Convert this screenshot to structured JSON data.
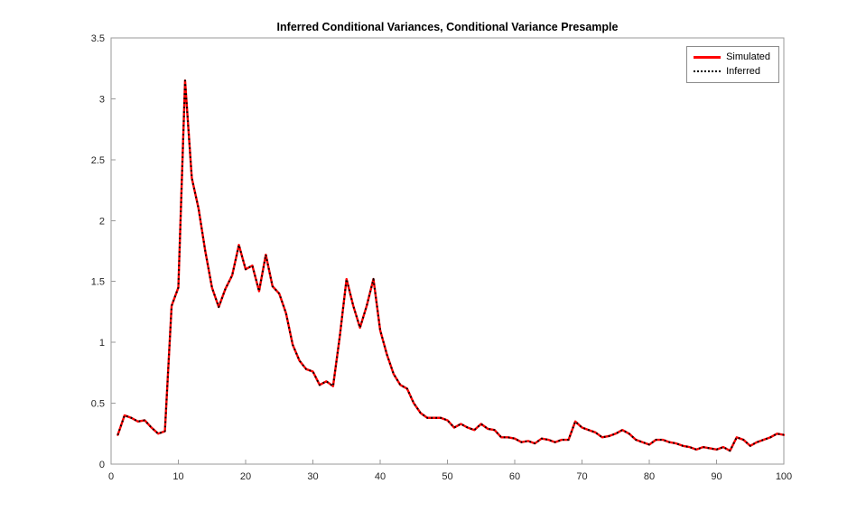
{
  "chart_data": {
    "type": "line",
    "title": "Inferred Conditional Variances, Conditional Variance Presample",
    "xlabel": "",
    "ylabel": "",
    "xlim": [
      0,
      100
    ],
    "ylim": [
      0,
      3.5
    ],
    "xticks": [
      0,
      10,
      20,
      30,
      40,
      50,
      60,
      70,
      80,
      90,
      100
    ],
    "yticks": [
      0,
      0.5,
      1,
      1.5,
      2,
      2.5,
      3,
      3.5
    ],
    "grid": false,
    "legend_position": "northeast",
    "axis_color": "#9a9a9a",
    "tick_label_color": "#262626",
    "x": [
      1,
      2,
      3,
      4,
      5,
      6,
      7,
      8,
      9,
      10,
      11,
      12,
      13,
      14,
      15,
      16,
      17,
      18,
      19,
      20,
      21,
      22,
      23,
      24,
      25,
      26,
      27,
      28,
      29,
      30,
      31,
      32,
      33,
      34,
      35,
      36,
      37,
      38,
      39,
      40,
      41,
      42,
      43,
      44,
      45,
      46,
      47,
      48,
      49,
      50,
      51,
      52,
      53,
      54,
      55,
      56,
      57,
      58,
      59,
      60,
      61,
      62,
      63,
      64,
      65,
      66,
      67,
      68,
      69,
      70,
      71,
      72,
      73,
      74,
      75,
      76,
      77,
      78,
      79,
      80,
      81,
      82,
      83,
      84,
      85,
      86,
      87,
      88,
      89,
      90,
      91,
      92,
      93,
      94,
      95,
      96,
      97,
      98,
      99,
      100
    ],
    "series": [
      {
        "name": "Simulated",
        "color": "#ff0000",
        "style": "solid",
        "width": 2.4,
        "values": [
          0.24,
          0.4,
          0.38,
          0.35,
          0.36,
          0.3,
          0.25,
          0.27,
          1.3,
          1.45,
          3.15,
          2.35,
          2.1,
          1.75,
          1.45,
          1.29,
          1.44,
          1.55,
          1.8,
          1.6,
          1.63,
          1.42,
          1.72,
          1.46,
          1.4,
          1.24,
          0.98,
          0.85,
          0.78,
          0.76,
          0.65,
          0.68,
          0.64,
          1.05,
          1.52,
          1.3,
          1.12,
          1.3,
          1.52,
          1.1,
          0.9,
          0.74,
          0.65,
          0.62,
          0.5,
          0.42,
          0.38,
          0.38,
          0.38,
          0.36,
          0.3,
          0.33,
          0.3,
          0.28,
          0.33,
          0.29,
          0.28,
          0.22,
          0.22,
          0.21,
          0.18,
          0.19,
          0.17,
          0.21,
          0.2,
          0.18,
          0.2,
          0.2,
          0.35,
          0.3,
          0.28,
          0.26,
          0.22,
          0.23,
          0.25,
          0.28,
          0.25,
          0.2,
          0.18,
          0.16,
          0.2,
          0.2,
          0.18,
          0.17,
          0.15,
          0.14,
          0.12,
          0.14,
          0.13,
          0.12,
          0.14,
          0.11,
          0.22,
          0.2,
          0.15,
          0.18,
          0.2,
          0.22,
          0.25,
          0.24
        ]
      },
      {
        "name": "Inferred",
        "color": "#000000",
        "style": "dotted",
        "width": 2,
        "values": [
          0.24,
          0.4,
          0.38,
          0.35,
          0.36,
          0.3,
          0.25,
          0.27,
          1.3,
          1.45,
          3.15,
          2.35,
          2.1,
          1.75,
          1.45,
          1.29,
          1.44,
          1.55,
          1.8,
          1.6,
          1.63,
          1.42,
          1.72,
          1.46,
          1.4,
          1.24,
          0.98,
          0.85,
          0.78,
          0.76,
          0.65,
          0.68,
          0.64,
          1.05,
          1.52,
          1.3,
          1.12,
          1.3,
          1.52,
          1.1,
          0.9,
          0.74,
          0.65,
          0.62,
          0.5,
          0.42,
          0.38,
          0.38,
          0.38,
          0.36,
          0.3,
          0.33,
          0.3,
          0.28,
          0.33,
          0.29,
          0.28,
          0.22,
          0.22,
          0.21,
          0.18,
          0.19,
          0.17,
          0.21,
          0.2,
          0.18,
          0.2,
          0.2,
          0.35,
          0.3,
          0.28,
          0.26,
          0.22,
          0.23,
          0.25,
          0.28,
          0.25,
          0.2,
          0.18,
          0.16,
          0.2,
          0.2,
          0.18,
          0.17,
          0.15,
          0.14,
          0.12,
          0.14,
          0.13,
          0.12,
          0.14,
          0.11,
          0.22,
          0.2,
          0.15,
          0.18,
          0.2,
          0.22,
          0.25,
          0.24
        ]
      }
    ]
  }
}
